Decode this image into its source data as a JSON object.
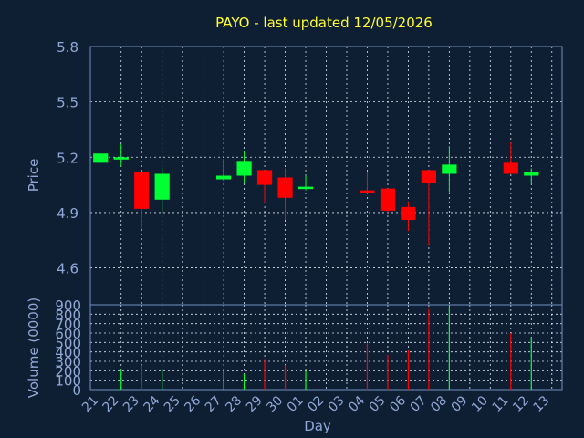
{
  "chart_data": [
    {
      "type": "candlestick",
      "title": "PAYO - last updated 12/05/2026",
      "ylabel": "Price",
      "ylim": [
        4.4,
        5.8
      ],
      "yticks": [
        "4.6",
        "4.9",
        "5.2",
        "5.5",
        "5.8"
      ],
      "grid": true,
      "categories": [
        "21",
        "22",
        "23",
        "24",
        "25",
        "26",
        "27",
        "28",
        "29",
        "30",
        "01",
        "02",
        "03",
        "04",
        "05",
        "06",
        "07",
        "08",
        "09",
        "10",
        "11",
        "12",
        "13"
      ],
      "candles": [
        {
          "i": 0,
          "open": 5.17,
          "close": 5.22,
          "high": 5.22,
          "low": 5.17
        },
        {
          "i": 1,
          "open": 5.19,
          "close": 5.2,
          "high": 5.27,
          "low": 5.15
        },
        {
          "i": 2,
          "open": 5.12,
          "close": 4.92,
          "high": 5.12,
          "low": 4.81
        },
        {
          "i": 3,
          "open": 4.97,
          "close": 5.11,
          "high": 5.14,
          "low": 4.9
        },
        {
          "i": 6,
          "open": 5.08,
          "close": 5.1,
          "high": 5.19,
          "low": 5.08
        },
        {
          "i": 7,
          "open": 5.1,
          "close": 5.18,
          "high": 5.23,
          "low": 5.06
        },
        {
          "i": 8,
          "open": 5.13,
          "close": 5.05,
          "high": 5.13,
          "low": 4.95
        },
        {
          "i": 9,
          "open": 5.09,
          "close": 4.98,
          "high": 5.14,
          "low": 4.86
        },
        {
          "i": 10,
          "open": 5.03,
          "close": 5.04,
          "high": 5.1,
          "low": 5.02
        },
        {
          "i": 13,
          "open": 5.02,
          "close": 5.01,
          "high": 5.12,
          "low": 5.0
        },
        {
          "i": 14,
          "open": 5.03,
          "close": 4.91,
          "high": 5.03,
          "low": 4.9
        },
        {
          "i": 15,
          "open": 4.93,
          "close": 4.86,
          "high": 4.96,
          "low": 4.8
        },
        {
          "i": 16,
          "open": 5.13,
          "close": 5.06,
          "high": 5.13,
          "low": 4.72
        },
        {
          "i": 17,
          "open": 5.11,
          "close": 5.16,
          "high": 5.26,
          "low": 5.01
        },
        {
          "i": 20,
          "open": 5.17,
          "close": 5.11,
          "high": 5.28,
          "low": 5.11
        },
        {
          "i": 21,
          "open": 5.1,
          "close": 5.12,
          "high": 5.14,
          "low": 5.06
        }
      ]
    },
    {
      "type": "bar",
      "ylabel": "Volume (0000)",
      "xlabel": "Day",
      "ylim": [
        0,
        900
      ],
      "yticks": [
        "0",
        "100",
        "200",
        "300",
        "400",
        "500",
        "600",
        "700",
        "800",
        "900"
      ],
      "categories": [
        "21",
        "22",
        "23",
        "24",
        "25",
        "26",
        "27",
        "28",
        "29",
        "30",
        "01",
        "02",
        "03",
        "04",
        "05",
        "06",
        "07",
        "08",
        "09",
        "10",
        "11",
        "12",
        "13"
      ],
      "values": [
        0,
        215,
        260,
        215,
        0,
        0,
        205,
        165,
        325,
        260,
        200,
        0,
        0,
        490,
        370,
        415,
        855,
        880,
        0,
        0,
        600,
        555,
        0
      ]
    }
  ],
  "colors": {
    "background": "#0f1f33",
    "axis": "#6f8fbf",
    "grid": "#dde5f0",
    "title": "#ffff33",
    "label": "#8fa8d6",
    "up": "#00ff33",
    "down": "#ff0000"
  }
}
